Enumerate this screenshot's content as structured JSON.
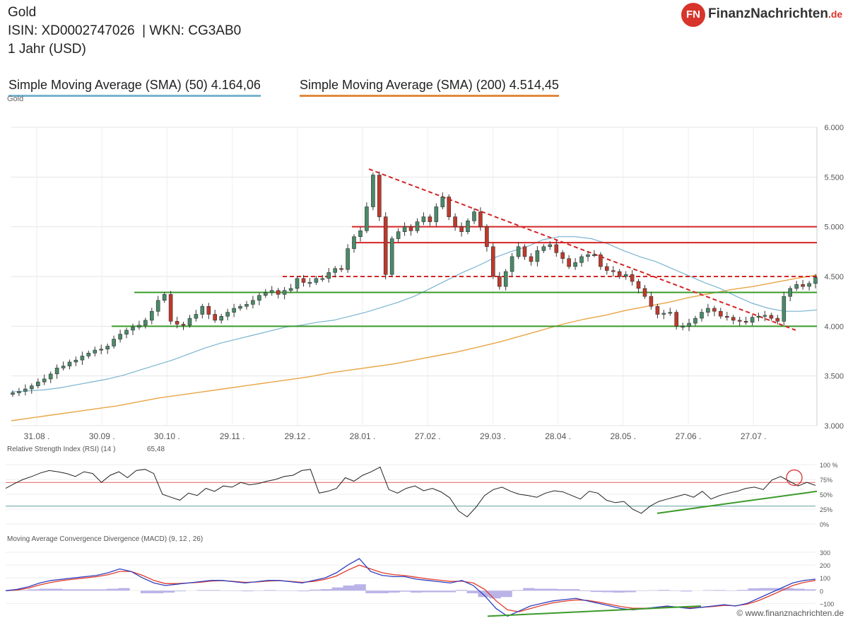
{
  "header": {
    "title": "Gold",
    "isin_line": "ISIN: XD0002747026  | WKN: CG3AB0",
    "period": "1 Jahr (USD)",
    "sma50_label": "Simple Moving Average (SMA) (50) 4.164,06",
    "sma200_label": "Simple Moving Average (SMA) (200) 4.514,45",
    "subtitle": "Gold"
  },
  "logo": {
    "badge": "FN",
    "name": "FinanzNachrichten",
    "tld": ".de"
  },
  "footer": "© www.finanznachrichten.de",
  "colors": {
    "up_candle": "#4a8a68",
    "down_candle": "#c0392b",
    "sma50": "#79b4cf",
    "sma200": "#e8a545",
    "support": "#3a9a2a",
    "resistance": "#d42424",
    "macd": "#2f3fbf",
    "signal": "#e03a2a",
    "histogram": "#b9b3e8"
  },
  "chart_data": [
    {
      "type": "candlestick",
      "title": "",
      "series": [
        {
          "name": "Gold",
          "values": [
            3330,
            3345,
            3370,
            3400,
            3440,
            3470,
            3520,
            3580,
            3600,
            3640,
            3660,
            3700,
            3730,
            3760,
            3770,
            3800,
            3870,
            3920,
            3960,
            3990,
            4010,
            4060,
            4150,
            4260,
            4320,
            4050,
            4020,
            4010,
            4080,
            4120,
            4200,
            4120,
            4060,
            4100,
            4140,
            4180,
            4200,
            4220,
            4260,
            4310,
            4340,
            4360,
            4320,
            4360,
            4380,
            4480,
            4440,
            4440,
            4480,
            4480,
            4540,
            4580,
            4570,
            4780,
            4900,
            4960,
            5200,
            5520,
            5100,
            4520,
            4880,
            4950,
            5000,
            4960,
            5050,
            5100,
            5050,
            5200,
            5300,
            5100,
            5000,
            4950,
            5060,
            5150,
            5000,
            4800,
            4500,
            4400,
            4550,
            4700,
            4800,
            4700,
            4650,
            4760,
            4800,
            4820,
            4740,
            4680,
            4600,
            4640,
            4700,
            4720,
            4720,
            4600,
            4560,
            4550,
            4500,
            4520,
            4450,
            4380,
            4300,
            4200,
            4120,
            4130,
            4140,
            4000,
            4000,
            4030,
            4080,
            4140,
            4180,
            4150,
            4100,
            4090,
            4060,
            4050,
            4040,
            4090,
            4100,
            4110,
            4080,
            4050,
            4300,
            4380,
            4420,
            4400,
            4430,
            4490
          ]
        },
        {
          "name": "Simple Moving Average (SMA) (50)",
          "values": [
            3340,
            3350,
            3360,
            3380,
            3410,
            3440,
            3470,
            3510,
            3560,
            3610,
            3660,
            3720,
            3780,
            3830,
            3870,
            3910,
            3950,
            3990,
            4010,
            4040,
            4060,
            4100,
            4140,
            4190,
            4240,
            4300,
            4380,
            4460,
            4540,
            4610,
            4690,
            4750,
            4800,
            4870,
            4900,
            4900,
            4880,
            4830,
            4760,
            4700,
            4650,
            4580,
            4510,
            4440,
            4380,
            4300,
            4230,
            4180,
            4150,
            4150,
            4164
          ]
        },
        {
          "name": "Simple Moving Average (SMA) (200)",
          "values": [
            3050,
            3080,
            3110,
            3140,
            3170,
            3200,
            3240,
            3280,
            3310,
            3340,
            3370,
            3400,
            3430,
            3460,
            3490,
            3530,
            3560,
            3590,
            3620,
            3660,
            3700,
            3740,
            3790,
            3840,
            3900,
            3960,
            4020,
            4070,
            4110,
            4160,
            4200,
            4240,
            4290,
            4330,
            4370,
            4400,
            4440,
            4480,
            4514
          ]
        }
      ],
      "x_tick_labels": [
        "31.08 .",
        "30.09 .",
        "30.10 .",
        "29.11 .",
        "29.12 .",
        "28.01 .",
        "27.02 .",
        "29.03 .",
        "28.04 .",
        "28.05 .",
        "27.06 .",
        "27.07 ."
      ],
      "y_ticks": [
        3000,
        3500,
        4000,
        4500,
        5000,
        5500,
        6000
      ],
      "y_tick_labels": [
        "3.000",
        "3.500",
        "4.000",
        "4.500",
        "5.000",
        "5.500",
        "6.000"
      ],
      "ylim": [
        3000,
        6000
      ],
      "horizontal_lines": [
        {
          "value": 4000,
          "style": "support"
        },
        {
          "value": 4340,
          "style": "support"
        },
        {
          "value": 4500,
          "style": "resistance-dashed"
        },
        {
          "value": 4840,
          "style": "resistance"
        },
        {
          "value": 5000,
          "style": "resistance"
        }
      ],
      "trendline": {
        "from": 5580,
        "to": 3960,
        "style": "dashed"
      }
    },
    {
      "type": "line",
      "title": "Relative Strength Index (RSI) (14 )",
      "last_value": "65,48",
      "series": [
        {
          "name": "RSI",
          "values": [
            60,
            68,
            75,
            80,
            86,
            90,
            88,
            85,
            80,
            88,
            85,
            70,
            82,
            88,
            78,
            90,
            92,
            85,
            50,
            45,
            40,
            52,
            48,
            60,
            55,
            64,
            62,
            70,
            66,
            68,
            72,
            75,
            80,
            82,
            90,
            92,
            52,
            55,
            60,
            78,
            72,
            82,
            88,
            96,
            58,
            52,
            60,
            64,
            56,
            60,
            54,
            44,
            22,
            12,
            28,
            48,
            58,
            62,
            55,
            50,
            48,
            45,
            52,
            56,
            54,
            48,
            42,
            55,
            52,
            40,
            36,
            38,
            25,
            18,
            30,
            38,
            42,
            46,
            50,
            45,
            55,
            42,
            48,
            52,
            55,
            60,
            62,
            58,
            74,
            80,
            72,
            64,
            70,
            65
          ]
        }
      ],
      "y_ticks": [
        0,
        25,
        50,
        75,
        100
      ],
      "y_tick_labels": [
        "0%",
        "25%",
        "50%",
        "75%",
        "100 %"
      ],
      "ylim": [
        0,
        100
      ],
      "reference_lines": [
        70,
        30
      ],
      "trendline": {
        "from": 18,
        "to": 55
      }
    },
    {
      "type": "line",
      "title": "Moving Average Convergence Divergence (MACD) (9, 12 , 26)",
      "series": [
        {
          "name": "MACD",
          "values": [
            0,
            10,
            30,
            60,
            80,
            90,
            100,
            110,
            120,
            140,
            170,
            150,
            100,
            60,
            40,
            50,
            60,
            70,
            80,
            80,
            70,
            60,
            70,
            80,
            80,
            70,
            60,
            80,
            100,
            140,
            200,
            250,
            150,
            120,
            110,
            110,
            90,
            80,
            70,
            60,
            80,
            40,
            -40,
            -140,
            -200,
            -160,
            -120,
            -100,
            -80,
            -70,
            -60,
            -80,
            -100,
            -120,
            -140,
            -150,
            -140,
            -130,
            -120,
            -130,
            -140,
            -130,
            -120,
            -110,
            -120,
            -100,
            -60,
            -20,
            20,
            60,
            80,
            90
          ]
        },
        {
          "name": "Signal",
          "values": [
            0,
            5,
            20,
            45,
            65,
            80,
            90,
            100,
            110,
            125,
            150,
            150,
            120,
            80,
            55,
            55,
            60,
            65,
            75,
            78,
            72,
            65,
            68,
            75,
            78,
            72,
            65,
            72,
            88,
            115,
            160,
            200,
            170,
            140,
            125,
            118,
            105,
            92,
            82,
            72,
            74,
            60,
            10,
            -80,
            -150,
            -165,
            -140,
            -115,
            -95,
            -82,
            -72,
            -76,
            -90,
            -108,
            -125,
            -138,
            -138,
            -133,
            -126,
            -128,
            -134,
            -130,
            -124,
            -115,
            -118,
            -106,
            -78,
            -40,
            0,
            40,
            65,
            80
          ]
        },
        {
          "name": "Histogram",
          "values": [
            0,
            5,
            10,
            15,
            15,
            10,
            10,
            10,
            10,
            15,
            20,
            0,
            -20,
            -20,
            -15,
            -5,
            0,
            5,
            5,
            2,
            -2,
            -5,
            2,
            5,
            2,
            -2,
            -5,
            8,
            12,
            25,
            40,
            50,
            -20,
            -20,
            -15,
            -8,
            -15,
            -12,
            -12,
            -12,
            6,
            -20,
            -50,
            -60,
            -50,
            5,
            20,
            15,
            15,
            12,
            12,
            -4,
            -10,
            -12,
            -15,
            -12,
            -2,
            3,
            6,
            -2,
            -6,
            0,
            4,
            5,
            -2,
            6,
            18,
            20,
            20,
            20,
            15,
            10
          ]
        }
      ],
      "y_ticks": [
        -100,
        0,
        100,
        200,
        300
      ],
      "y_tick_labels": [
        "−100",
        "0",
        "100",
        "200",
        "300"
      ],
      "ylim": [
        -170,
        300
      ],
      "trendline": {
        "from": -200,
        "to": -120
      }
    }
  ]
}
